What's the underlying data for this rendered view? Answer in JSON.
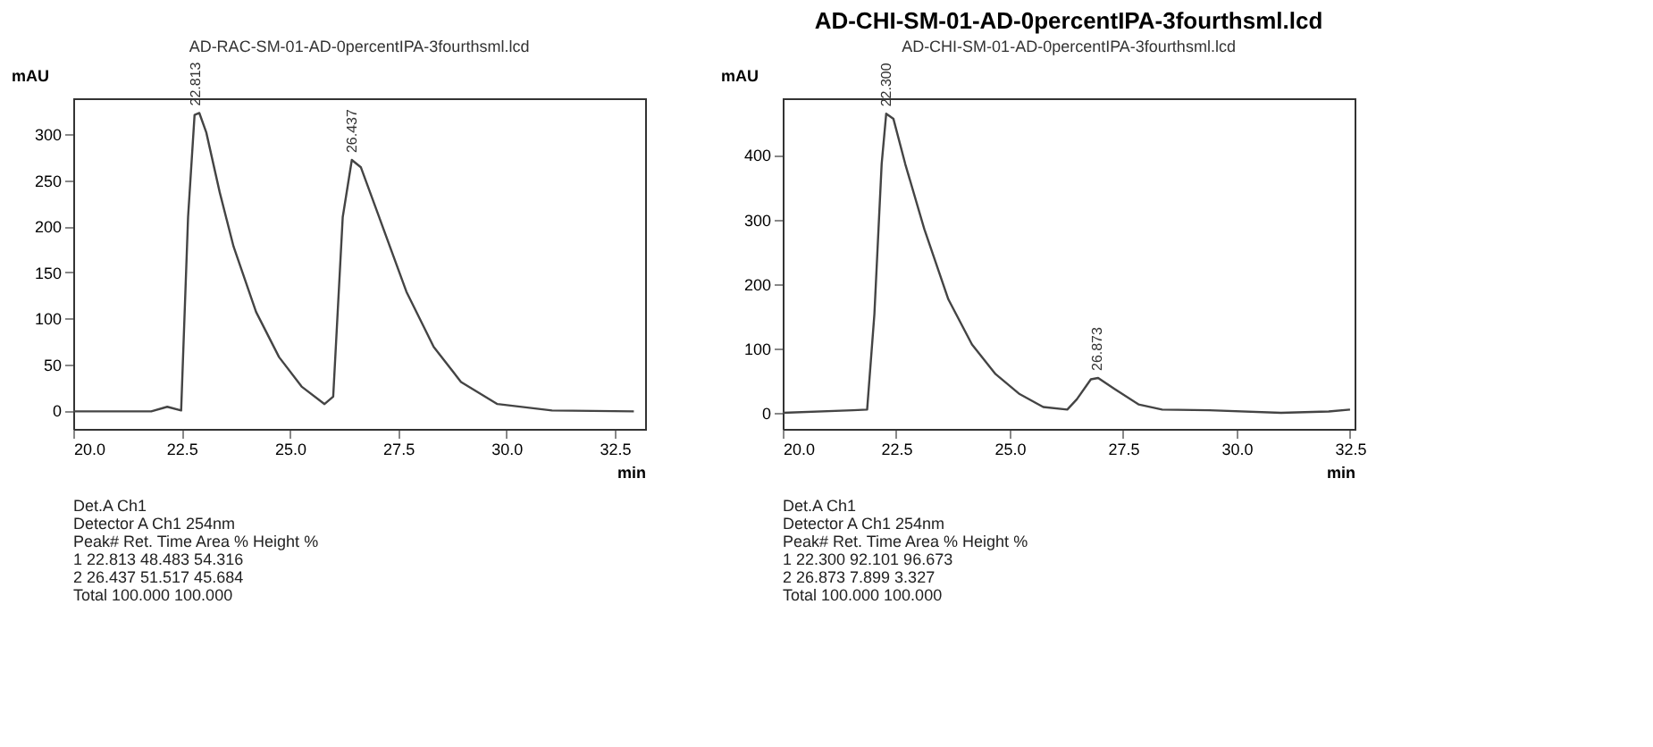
{
  "chart_data": [
    {
      "type": "line",
      "subtitle": "AD-RAC-SM-01-AD-0percentIPA-3fourthsml.lcd",
      "xlabel": "min",
      "ylabel": "mAU",
      "xlim": [
        20,
        33.2
      ],
      "ylim": [
        -20,
        339
      ],
      "xticks": [
        {
          "value": 20,
          "label": "20.0"
        },
        {
          "value": 22.5,
          "label": "22.5"
        },
        {
          "value": 25,
          "label": "25.0"
        },
        {
          "value": 27.5,
          "label": "27.5"
        },
        {
          "value": 30,
          "label": "30.0"
        },
        {
          "value": 32.5,
          "label": "32.5"
        }
      ],
      "yticks": [
        0,
        50,
        100,
        150,
        200,
        250,
        300
      ],
      "grid": false,
      "marker": "none",
      "line_style": "solid",
      "series": [
        {
          "color": "#444444",
          "x": [
            20,
            21.8,
            22.17,
            22.49,
            22.65,
            22.8,
            22.91,
            23.07,
            23.38,
            23.7,
            24.22,
            24.75,
            25.27,
            25.8,
            26.0,
            26.22,
            26.43,
            26.64,
            27.06,
            27.69,
            28.32,
            28.95,
            29.79,
            31.05,
            32.94
          ],
          "values": [
            -1,
            -1,
            4,
            0,
            210,
            321,
            323,
            302,
            237,
            178,
            107,
            58,
            26,
            7,
            15,
            210,
            272,
            264,
            210,
            129,
            69,
            31,
            7,
            0,
            -1
          ]
        }
      ],
      "annotations": [
        {
          "text": "22.813",
          "x": 22.85,
          "y": 323
        },
        {
          "text": "26.437",
          "x": 26.45,
          "y": 272
        },
        "Det.A Ch1",
        "Detector A Ch1 254nm",
        "Peak#   Ret. Time   Area %   Height %",
        "1   22.813   48.483   54.316",
        "2   26.437   51.517   45.684",
        "Total   100.000   100.000"
      ]
    },
    {
      "type": "line",
      "title": "AD-CHI-SM-01-AD-0percentIPA-3fourthsml.lcd",
      "subtitle": "AD-CHI-SM-01-AD-0percentIPA-3fourthsml.lcd",
      "xlabel": "min",
      "ylabel": "mAU",
      "xlim": [
        20,
        32.6
      ],
      "ylim": [
        -25,
        488
      ],
      "xticks": [
        {
          "value": 20,
          "label": "20.0"
        },
        {
          "value": 22.5,
          "label": "22.5"
        },
        {
          "value": 25,
          "label": "25.0"
        },
        {
          "value": 27.5,
          "label": "27.5"
        },
        {
          "value": 30,
          "label": "30.0"
        },
        {
          "value": 32.5,
          "label": "32.5"
        }
      ],
      "yticks": [
        0,
        100,
        200,
        300,
        400
      ],
      "grid": false,
      "marker": "none",
      "line_style": "solid",
      "series": [
        {
          "color": "#444444",
          "x": [
            20,
            21.55,
            21.86,
            22.02,
            22.18,
            22.28,
            22.44,
            22.7,
            23.12,
            23.65,
            24.17,
            24.69,
            25.22,
            25.74,
            26.27,
            26.48,
            26.79,
            26.95,
            27.31,
            27.84,
            28.36,
            29.4,
            30.98,
            32.03,
            32.5
          ],
          "values": [
            0,
            4,
            5,
            153,
            386,
            464,
            456,
            386,
            285,
            176,
            106,
            60,
            29,
            9,
            5,
            21,
            52,
            54,
            37,
            13,
            5,
            4,
            0,
            2,
            5
          ]
        }
      ],
      "annotations": [
        {
          "text": "22.300",
          "x": 22.3,
          "y": 464
        },
        {
          "text": "26.873",
          "x": 26.95,
          "y": 54
        },
        "Det.A Ch1",
        "Detector A Ch1 254nm",
        "Peak#   Ret. Time   Area %   Height %",
        "1   22.300   92.101   96.673",
        "2   26.873   7.899   3.327",
        "Total   100.000   100.000"
      ]
    }
  ]
}
